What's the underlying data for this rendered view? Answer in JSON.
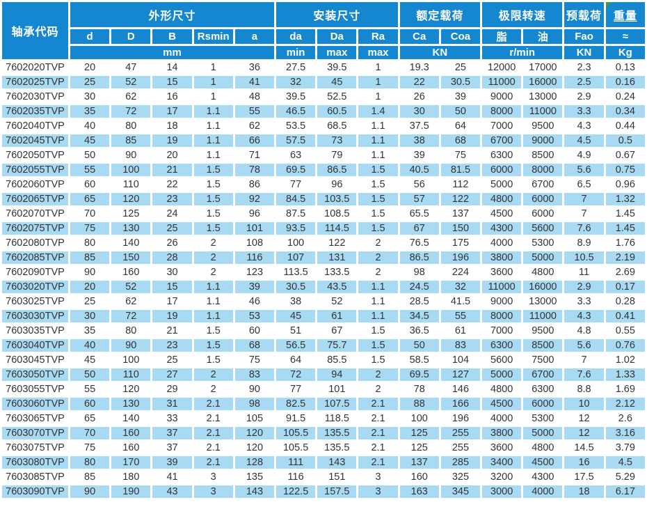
{
  "table": {
    "header": {
      "bearing_code": "轴承代码",
      "groups": {
        "dimensions": "外形尺寸",
        "mounting": "安装尺寸",
        "rated_load": "额定载荷",
        "limit_speed": "极限转速",
        "preload": "预载荷",
        "weight": "重量"
      },
      "sub": {
        "d": "d",
        "D_outer": "D",
        "B": "B",
        "rsmin": "Rsmin",
        "a": "a",
        "da": "da",
        "Da_mount": "Da",
        "ra": "Ra",
        "ca": "Ca",
        "coa": "Coa",
        "grease": "脂",
        "oil": "油",
        "fao": "Fao",
        "approx": "≈"
      },
      "units": {
        "mm": "mm",
        "min": "min",
        "max_da": "max",
        "max_ra": "max",
        "kn_load": "KN",
        "rpm": "r/min",
        "kn_preload": "KN",
        "kg": "Kg"
      }
    },
    "rows": [
      [
        "7602020TVP",
        20,
        47,
        14,
        1,
        36,
        27.5,
        39.5,
        1,
        19.3,
        25,
        12000,
        17000,
        2.3,
        0.13
      ],
      [
        "7602025TVP",
        25,
        52,
        15,
        1,
        41,
        32,
        45,
        1,
        22,
        30.5,
        11000,
        16000,
        2.5,
        0.16
      ],
      [
        "7602030TVP",
        30,
        62,
        16,
        1,
        48,
        39.5,
        52.5,
        1,
        26,
        39,
        9000,
        13000,
        2.9,
        0.24
      ],
      [
        "7602035TVP",
        35,
        72,
        17,
        1.1,
        55,
        46.5,
        60.5,
        1.4,
        30,
        50,
        8000,
        11000,
        3.3,
        0.34
      ],
      [
        "7602040TVP",
        40,
        80,
        18,
        1.1,
        62,
        53.5,
        68.5,
        1.1,
        37.5,
        64,
        7000,
        9500,
        4.3,
        0.44
      ],
      [
        "7602045TVP",
        45,
        85,
        19,
        1.1,
        66,
        57.5,
        73,
        1.1,
        38,
        68,
        6700,
        9000,
        4.5,
        0.5
      ],
      [
        "7602050TVP",
        50,
        90,
        20,
        1.1,
        71,
        63,
        79,
        1.1,
        39,
        75,
        6300,
        8500,
        4.9,
        0.67
      ],
      [
        "7602055TVP",
        55,
        100,
        21,
        1.5,
        78,
        69.5,
        86.5,
        1.5,
        40.5,
        81.5,
        6000,
        8000,
        5.6,
        0.75
      ],
      [
        "7602060TVP",
        60,
        110,
        22,
        1.5,
        86,
        77,
        96,
        1.5,
        56,
        112,
        5000,
        6700,
        6.5,
        0.96
      ],
      [
        "7602065TVP",
        65,
        120,
        23,
        1.5,
        92,
        84.5,
        103.5,
        1.5,
        57,
        122,
        4800,
        6000,
        7,
        1.32
      ],
      [
        "7602070TVP",
        70,
        125,
        24,
        1.5,
        96,
        87.5,
        108.5,
        1.5,
        65.5,
        137,
        4500,
        6000,
        7,
        1.45
      ],
      [
        "7602075TVP",
        75,
        130,
        25,
        1.5,
        101,
        93.5,
        114.5,
        1.5,
        67,
        150,
        4300,
        5600,
        7.6,
        1.45
      ],
      [
        "7602080TVP",
        80,
        140,
        26,
        2,
        108,
        100,
        122,
        2,
        76.5,
        175,
        4000,
        5300,
        8.9,
        1.76
      ],
      [
        "7602085TVP",
        85,
        150,
        28,
        2,
        116,
        107,
        131,
        2,
        86.5,
        196,
        3800,
        5000,
        10.5,
        2.19
      ],
      [
        "7602090TVP",
        90,
        160,
        30,
        2,
        123,
        113.5,
        133.5,
        2,
        98,
        224,
        3600,
        4800,
        11,
        2.69
      ],
      [
        "7603020TVP",
        20,
        52,
        15,
        1.1,
        39,
        30.5,
        43.5,
        1.1,
        24.5,
        32,
        11000,
        16000,
        2.9,
        0.17
      ],
      [
        "7603025TVP",
        25,
        62,
        17,
        1.1,
        46,
        38,
        52,
        1.1,
        28.5,
        41.5,
        9000,
        13000,
        3.3,
        0.28
      ],
      [
        "7603030TVP",
        30,
        72,
        19,
        1.1,
        53,
        45,
        61,
        1.1,
        34.5,
        55,
        8000,
        11000,
        4.3,
        0.41
      ],
      [
        "7603035TVP",
        35,
        80,
        21,
        1.5,
        60,
        51,
        67,
        1.5,
        36.5,
        61,
        7000,
        9500,
        4.8,
        0.55
      ],
      [
        "7603040TVP",
        40,
        90,
        23,
        1.5,
        68,
        56.5,
        75.7,
        1.5,
        50,
        83,
        6300,
        8500,
        5.6,
        0.76
      ],
      [
        "7603045TVP",
        45,
        100,
        25,
        1.5,
        75,
        64,
        85.5,
        1.5,
        58.5,
        104,
        5600,
        7500,
        7,
        1.02
      ],
      [
        "7603050TVP",
        50,
        110,
        27,
        2,
        83,
        72,
        94,
        2,
        69.5,
        127,
        5000,
        6700,
        7.6,
        1.33
      ],
      [
        "7603055TVP",
        55,
        120,
        29,
        2,
        90,
        77,
        101,
        2,
        78,
        146,
        4800,
        6300,
        8.8,
        1.69
      ],
      [
        "7603060TVP",
        60,
        130,
        31,
        2.1,
        98,
        82.5,
        107.5,
        2.1,
        88,
        166,
        4500,
        6000,
        10,
        2.12
      ],
      [
        "7603065TVP",
        65,
        140,
        33,
        2.1,
        105,
        91.5,
        118.5,
        2.1,
        100,
        196,
        4000,
        5300,
        12,
        2.6
      ],
      [
        "7603070TVP",
        70,
        160,
        37,
        2.1,
        120,
        105.5,
        135.5,
        2.1,
        125,
        255,
        3800,
        5000,
        12,
        3.16
      ],
      [
        "7603075TVP",
        75,
        160,
        37,
        2.1,
        120,
        105.5,
        135.5,
        2.1,
        125,
        255,
        3600,
        4800,
        14.5,
        3.79
      ],
      [
        "7603080TVP",
        80,
        170,
        39,
        2.1,
        128,
        111,
        143,
        2.1,
        137,
        285,
        3400,
        4500,
        16,
        4.5
      ],
      [
        "7603085TVP",
        85,
        180,
        41,
        3,
        135,
        116,
        151,
        3,
        160,
        325,
        3200,
        4300,
        17.5,
        5.29
      ],
      [
        "7603090TVP",
        90,
        190,
        43,
        3,
        143,
        122.5,
        157.5,
        3,
        163,
        345,
        3000,
        4000,
        18,
        6.17
      ]
    ]
  },
  "colors": {
    "header_bg": "#1487d0",
    "alt_row_bg": "#a9daf3",
    "header_text": "#ffffff",
    "body_text": "#333333",
    "marker_green": "#3f9c35",
    "page_bg": "#ffffff"
  }
}
